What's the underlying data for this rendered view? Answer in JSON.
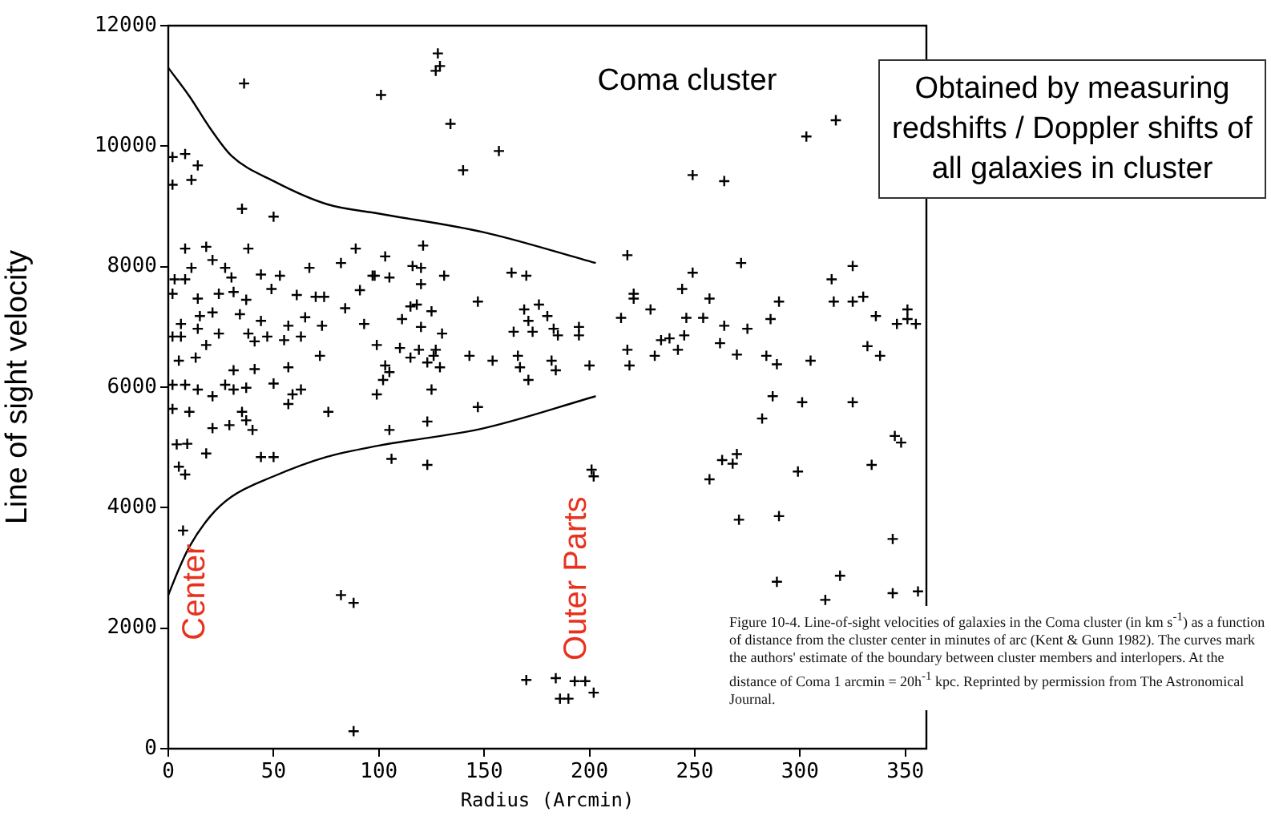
{
  "chart_data": {
    "type": "scatter",
    "ylabel": "Line of sight velocity",
    "xlabel": "Radius (Arcmin)",
    "xlim": [
      0,
      360
    ],
    "xticks": [
      0,
      50,
      100,
      150,
      200,
      250,
      300,
      350
    ],
    "ylim": [
      0,
      12000
    ],
    "yticks": [
      0,
      2000,
      4000,
      6000,
      8000,
      10000,
      12000
    ],
    "grid": false,
    "legend": false,
    "annotations": [
      "Coma cluster",
      "Obtained by measuring redshifts / Doppler shifts of all galaxies in cluster",
      "Center",
      "Outer Parts",
      "Figure 10-4. Line-of-sight velocities of galaxies in the Coma cluster (in km s$^{-1}$) as a function of distance from the cluster center in minutes of arc (Kent & Gunn 1982). The curves mark the authors' estimate of the boundary between cluster members and interlopers. At the distance of Coma 1 arcmin = 20h$^{-1}$ kpc. Reprinted by permission from The Astronomical Journal."
    ],
    "series": [
      {
        "marker": "cross",
        "color": "#000000",
        "x": [
          36,
          101,
          128,
          129,
          127,
          134,
          157,
          140,
          249,
          264,
          303,
          317,
          35,
          50,
          2,
          8,
          14,
          11,
          2,
          7,
          82,
          88,
          88,
          5,
          8,
          44,
          50,
          9,
          18,
          170,
          184,
          186,
          190,
          193,
          198,
          202,
          201,
          202,
          106,
          123,
          257,
          263,
          268,
          270,
          271,
          290,
          282,
          287,
          301,
          325,
          299,
          334,
          345,
          348,
          344,
          289,
          319,
          312,
          344,
          356,
          218,
          221,
          221,
          215,
          218,
          219,
          229,
          231,
          234,
          238,
          242,
          244,
          246,
          245,
          249,
          254,
          257,
          264,
          262,
          272,
          275,
          270,
          284,
          286,
          290,
          289,
          305,
          315,
          316,
          325,
          325,
          330,
          332,
          336,
          338,
          346,
          351,
          351,
          355,
          163,
          170,
          169,
          176,
          171,
          173,
          180,
          183,
          185,
          164,
          166,
          167,
          171,
          182,
          184,
          195,
          195,
          200,
          147,
          143,
          154,
          147,
          103,
          121,
          98,
          105,
          116,
          120,
          120,
          131,
          115,
          118,
          111,
          125,
          120,
          130,
          99,
          110,
          115,
          119,
          127,
          126,
          123,
          129,
          103,
          105,
          102,
          99,
          125,
          105,
          123,
          8,
          18,
          38,
          89,
          82,
          67,
          44,
          21,
          11,
          3,
          8,
          27,
          30,
          53,
          70,
          91,
          97,
          2,
          14,
          24,
          31,
          37,
          49,
          61,
          74,
          84,
          6,
          15,
          21,
          34,
          44,
          57,
          65,
          73,
          93,
          2,
          6,
          14,
          18,
          24,
          38,
          41,
          47,
          55,
          63,
          5,
          13,
          31,
          41,
          57,
          72,
          2,
          8,
          14,
          21,
          27,
          31,
          37,
          50,
          59,
          63,
          2,
          10,
          21,
          29,
          35,
          40,
          57,
          76,
          37,
          4
        ],
        "values": [
          11040,
          10850,
          11540,
          11330,
          11250,
          10370,
          9920,
          9600,
          9520,
          9420,
          10160,
          10430,
          8960,
          8830,
          9820,
          9870,
          9680,
          9440,
          9360,
          3620,
          2550,
          2420,
          290,
          4680,
          4550,
          4840,
          4840,
          5060,
          4900,
          1140,
          1170,
          830,
          830,
          1120,
          1120,
          930,
          4630,
          4520,
          4810,
          4710,
          4470,
          4790,
          4730,
          4890,
          3800,
          3860,
          5480,
          5850,
          5750,
          5750,
          4600,
          4710,
          5190,
          5080,
          3480,
          2770,
          2870,
          2470,
          2580,
          2610,
          8190,
          7470,
          7550,
          7150,
          6620,
          6360,
          7290,
          6520,
          6780,
          6810,
          6620,
          7630,
          7150,
          6860,
          7900,
          7150,
          7470,
          7020,
          6730,
          8060,
          6970,
          6540,
          6520,
          7130,
          7420,
          6380,
          6440,
          7790,
          7420,
          8010,
          7420,
          7500,
          6680,
          7180,
          6520,
          7050,
          7290,
          7130,
          7050,
          7900,
          7850,
          7290,
          7370,
          7100,
          6920,
          7180,
          6970,
          6860,
          6920,
          6520,
          6330,
          6120,
          6440,
          6280,
          7000,
          6860,
          6360,
          7420,
          6520,
          6440,
          5670,
          8170,
          8350,
          7850,
          7820,
          8010,
          7980,
          7710,
          7850,
          7340,
          7370,
          7130,
          7260,
          7000,
          6890,
          6700,
          6650,
          6490,
          6620,
          6620,
          6520,
          6410,
          6330,
          6360,
          6250,
          6120,
          5880,
          5960,
          5290,
          5430,
          8300,
          8330,
          8300,
          8300,
          8060,
          7980,
          7870,
          8110,
          7980,
          7790,
          7790,
          7980,
          7820,
          7850,
          7500,
          7610,
          7850,
          7550,
          7470,
          7550,
          7580,
          7450,
          7630,
          7530,
          7500,
          7310,
          7050,
          7180,
          7240,
          7210,
          7100,
          7020,
          7160,
          7020,
          7050,
          6840,
          6840,
          6970,
          6700,
          6890,
          6890,
          6760,
          6840,
          6780,
          6840,
          6440,
          6490,
          6280,
          6300,
          6330,
          6520,
          6040,
          6040,
          5960,
          5850,
          6040,
          5960,
          5990,
          6060,
          5880,
          5960,
          5640,
          5590,
          5320,
          5370,
          5590,
          5290,
          5720,
          5590,
          5450,
          5050
        ]
      },
      {
        "type": "line",
        "marker": "none",
        "color": "#000000",
        "x": [
          0,
          10,
          20,
          30,
          50,
          75,
          100,
          150,
          203
        ],
        "values": [
          11300,
          10830,
          10290,
          9840,
          9420,
          9040,
          8880,
          8570,
          8060
        ]
      },
      {
        "type": "line",
        "marker": "none",
        "color": "#000000",
        "x": [
          0,
          5,
          10,
          20,
          30,
          50,
          75,
          100,
          150,
          203
        ],
        "values": [
          2550,
          2980,
          3350,
          3860,
          4180,
          4520,
          4840,
          5030,
          5320,
          5850
        ]
      }
    ]
  }
}
